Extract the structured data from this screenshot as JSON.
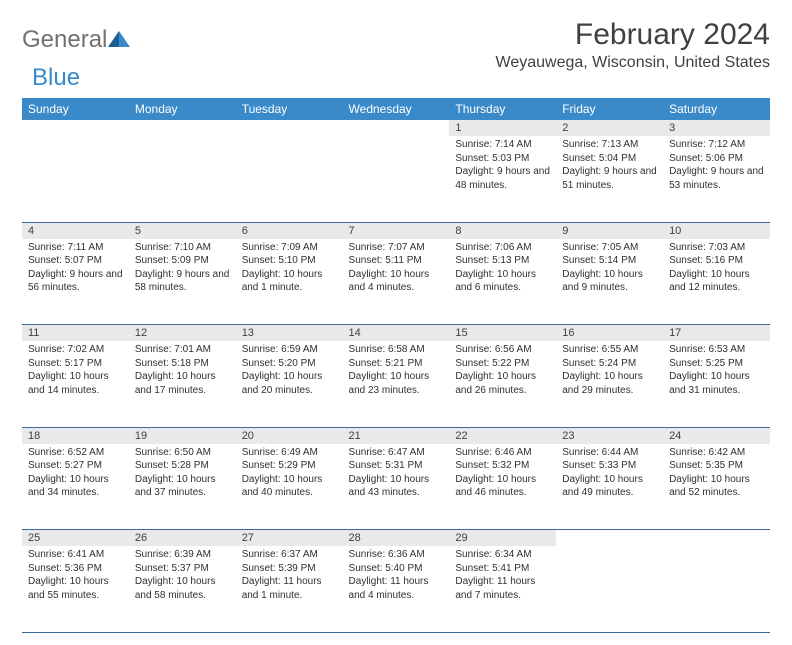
{
  "brand": {
    "part1": "General",
    "part2": "Blue"
  },
  "title": "February 2024",
  "location": "Weyauwega, Wisconsin, United States",
  "style": {
    "header_bg": "#3a8ac9",
    "header_text": "#ffffff",
    "daynum_bg": "#e9e9e9",
    "border_color": "#3a6a9a",
    "text_color": "#303030",
    "brand_gray": "#707070",
    "brand_blue": "#3a8ac9",
    "font_size_title": 30,
    "font_size_location": 16,
    "font_size_header": 12,
    "font_size_daynum": 11,
    "font_size_cell": 10
  },
  "weekdays": [
    "Sunday",
    "Monday",
    "Tuesday",
    "Wednesday",
    "Thursday",
    "Friday",
    "Saturday"
  ],
  "weeks": [
    [
      null,
      null,
      null,
      null,
      {
        "n": "1",
        "sunrise": "7:14 AM",
        "sunset": "5:03 PM",
        "daylight": "9 hours and 48 minutes."
      },
      {
        "n": "2",
        "sunrise": "7:13 AM",
        "sunset": "5:04 PM",
        "daylight": "9 hours and 51 minutes."
      },
      {
        "n": "3",
        "sunrise": "7:12 AM",
        "sunset": "5:06 PM",
        "daylight": "9 hours and 53 minutes."
      }
    ],
    [
      {
        "n": "4",
        "sunrise": "7:11 AM",
        "sunset": "5:07 PM",
        "daylight": "9 hours and 56 minutes."
      },
      {
        "n": "5",
        "sunrise": "7:10 AM",
        "sunset": "5:09 PM",
        "daylight": "9 hours and 58 minutes."
      },
      {
        "n": "6",
        "sunrise": "7:09 AM",
        "sunset": "5:10 PM",
        "daylight": "10 hours and 1 minute."
      },
      {
        "n": "7",
        "sunrise": "7:07 AM",
        "sunset": "5:11 PM",
        "daylight": "10 hours and 4 minutes."
      },
      {
        "n": "8",
        "sunrise": "7:06 AM",
        "sunset": "5:13 PM",
        "daylight": "10 hours and 6 minutes."
      },
      {
        "n": "9",
        "sunrise": "7:05 AM",
        "sunset": "5:14 PM",
        "daylight": "10 hours and 9 minutes."
      },
      {
        "n": "10",
        "sunrise": "7:03 AM",
        "sunset": "5:16 PM",
        "daylight": "10 hours and 12 minutes."
      }
    ],
    [
      {
        "n": "11",
        "sunrise": "7:02 AM",
        "sunset": "5:17 PM",
        "daylight": "10 hours and 14 minutes."
      },
      {
        "n": "12",
        "sunrise": "7:01 AM",
        "sunset": "5:18 PM",
        "daylight": "10 hours and 17 minutes."
      },
      {
        "n": "13",
        "sunrise": "6:59 AM",
        "sunset": "5:20 PM",
        "daylight": "10 hours and 20 minutes."
      },
      {
        "n": "14",
        "sunrise": "6:58 AM",
        "sunset": "5:21 PM",
        "daylight": "10 hours and 23 minutes."
      },
      {
        "n": "15",
        "sunrise": "6:56 AM",
        "sunset": "5:22 PM",
        "daylight": "10 hours and 26 minutes."
      },
      {
        "n": "16",
        "sunrise": "6:55 AM",
        "sunset": "5:24 PM",
        "daylight": "10 hours and 29 minutes."
      },
      {
        "n": "17",
        "sunrise": "6:53 AM",
        "sunset": "5:25 PM",
        "daylight": "10 hours and 31 minutes."
      }
    ],
    [
      {
        "n": "18",
        "sunrise": "6:52 AM",
        "sunset": "5:27 PM",
        "daylight": "10 hours and 34 minutes."
      },
      {
        "n": "19",
        "sunrise": "6:50 AM",
        "sunset": "5:28 PM",
        "daylight": "10 hours and 37 minutes."
      },
      {
        "n": "20",
        "sunrise": "6:49 AM",
        "sunset": "5:29 PM",
        "daylight": "10 hours and 40 minutes."
      },
      {
        "n": "21",
        "sunrise": "6:47 AM",
        "sunset": "5:31 PM",
        "daylight": "10 hours and 43 minutes."
      },
      {
        "n": "22",
        "sunrise": "6:46 AM",
        "sunset": "5:32 PM",
        "daylight": "10 hours and 46 minutes."
      },
      {
        "n": "23",
        "sunrise": "6:44 AM",
        "sunset": "5:33 PM",
        "daylight": "10 hours and 49 minutes."
      },
      {
        "n": "24",
        "sunrise": "6:42 AM",
        "sunset": "5:35 PM",
        "daylight": "10 hours and 52 minutes."
      }
    ],
    [
      {
        "n": "25",
        "sunrise": "6:41 AM",
        "sunset": "5:36 PM",
        "daylight": "10 hours and 55 minutes."
      },
      {
        "n": "26",
        "sunrise": "6:39 AM",
        "sunset": "5:37 PM",
        "daylight": "10 hours and 58 minutes."
      },
      {
        "n": "27",
        "sunrise": "6:37 AM",
        "sunset": "5:39 PM",
        "daylight": "11 hours and 1 minute."
      },
      {
        "n": "28",
        "sunrise": "6:36 AM",
        "sunset": "5:40 PM",
        "daylight": "11 hours and 4 minutes."
      },
      {
        "n": "29",
        "sunrise": "6:34 AM",
        "sunset": "5:41 PM",
        "daylight": "11 hours and 7 minutes."
      },
      null,
      null
    ]
  ]
}
